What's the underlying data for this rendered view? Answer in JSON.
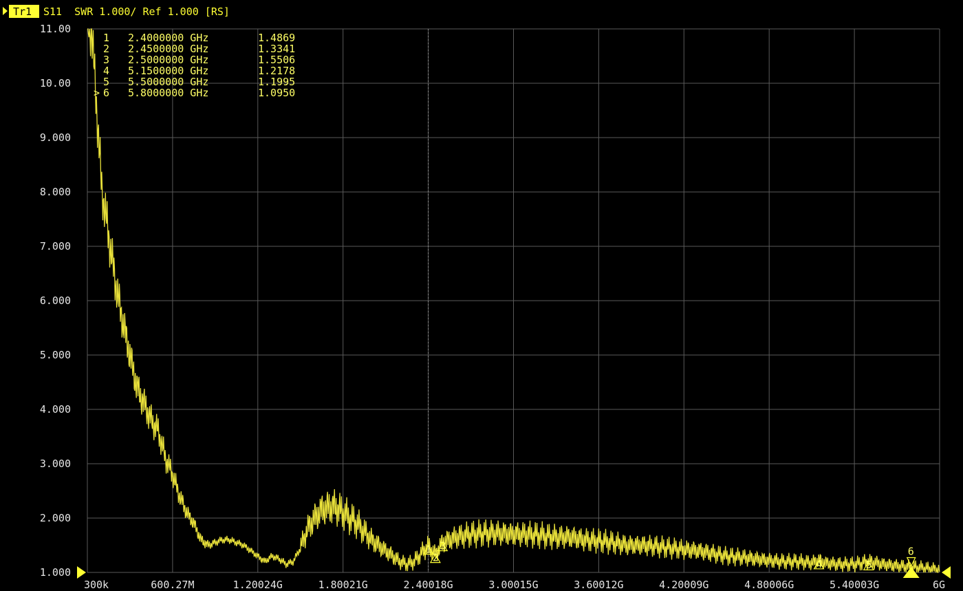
{
  "header": {
    "trace_label": "Tr1",
    "trace_info": "S11  SWR 1.000/ Ref 1.000 [RS]"
  },
  "colors": {
    "background": "#000000",
    "grid": "#5a5a5a",
    "trace": "#e8e03a",
    "marker": "#ffff33",
    "tick_text": "#e6e6e6"
  },
  "chart_data": {
    "type": "line",
    "title": "",
    "xlabel": "",
    "ylabel": "",
    "grid": true,
    "ylim": [
      1.0,
      11.0
    ],
    "xlim_ghz": [
      0.0003,
      6.0
    ],
    "y_tick_labels": [
      "11.00",
      "10.00",
      "9.000",
      "8.000",
      "7.000",
      "6.000",
      "5.000",
      "4.000",
      "3.000",
      "2.000",
      "1.000"
    ],
    "x_tick_labels": [
      "300k",
      "600.27M",
      "1.20024G",
      "1.80021G",
      "2.40018G",
      "3.00015G",
      "3.60012G",
      "4.20009G",
      "4.80006G",
      "5.40003G",
      "6G"
    ],
    "series": [
      {
        "x_ghz": [
          0.0003,
          0.03,
          0.06,
          0.1,
          0.15,
          0.2,
          0.25,
          0.3,
          0.35,
          0.4,
          0.45,
          0.5,
          0.55,
          0.6,
          0.65,
          0.7,
          0.75,
          0.8,
          0.85,
          0.9,
          0.95,
          1.0,
          1.05,
          1.1,
          1.15,
          1.2,
          1.25,
          1.3,
          1.35,
          1.4,
          1.45,
          1.5,
          1.55,
          1.6,
          1.65,
          1.7,
          1.75,
          1.8,
          1.85,
          1.9,
          1.95,
          2.0,
          2.05,
          2.1,
          2.15,
          2.2,
          2.25,
          2.3,
          2.35,
          2.4,
          2.45,
          2.5,
          2.55,
          2.6,
          2.7,
          2.8,
          2.9,
          3.0,
          3.1,
          3.2,
          3.3,
          3.4,
          3.5,
          3.6,
          3.7,
          3.8,
          3.9,
          4.0,
          4.1,
          4.2,
          4.3,
          4.4,
          4.5,
          4.6,
          4.7,
          4.8,
          4.9,
          5.0,
          5.1,
          5.15,
          5.2,
          5.3,
          5.4,
          5.5,
          5.6,
          5.7,
          5.8,
          5.9,
          6.0
        ],
        "swr": [
          11.0,
          11.0,
          9.8,
          8.1,
          7.2,
          6.3,
          5.6,
          5.0,
          4.4,
          4.1,
          3.8,
          3.6,
          3.1,
          2.8,
          2.4,
          2.1,
          1.9,
          1.6,
          1.5,
          1.55,
          1.6,
          1.6,
          1.55,
          1.5,
          1.4,
          1.3,
          1.2,
          1.3,
          1.25,
          1.15,
          1.2,
          1.45,
          1.8,
          2.0,
          2.15,
          2.2,
          2.2,
          2.1,
          2.0,
          1.9,
          1.75,
          1.6,
          1.5,
          1.4,
          1.3,
          1.2,
          1.15,
          1.2,
          1.35,
          1.49,
          1.33,
          1.55,
          1.6,
          1.65,
          1.7,
          1.72,
          1.72,
          1.7,
          1.7,
          1.68,
          1.65,
          1.65,
          1.6,
          1.58,
          1.55,
          1.5,
          1.5,
          1.48,
          1.45,
          1.42,
          1.4,
          1.35,
          1.3,
          1.28,
          1.25,
          1.22,
          1.2,
          1.2,
          1.18,
          1.22,
          1.17,
          1.15,
          1.15,
          1.2,
          1.15,
          1.12,
          1.1,
          1.08,
          1.05
        ]
      }
    ],
    "markers": [
      {
        "num": "1",
        "freq": "2.4000000 GHz",
        "value": "1.4869",
        "x_ghz": 2.4,
        "swr": 1.4869,
        "active": false
      },
      {
        "num": "2",
        "freq": "2.4500000 GHz",
        "value": "1.3341",
        "x_ghz": 2.45,
        "swr": 1.3341,
        "active": false
      },
      {
        "num": "3",
        "freq": "2.5000000 GHz",
        "value": "1.5506",
        "x_ghz": 2.5,
        "swr": 1.5506,
        "active": false
      },
      {
        "num": "4",
        "freq": "5.1500000 GHz",
        "value": "1.2178",
        "x_ghz": 5.15,
        "swr": 1.2178,
        "active": false
      },
      {
        "num": "5",
        "freq": "5.5000000 GHz",
        "value": "1.1995",
        "x_ghz": 5.5,
        "swr": 1.1995,
        "active": false
      },
      {
        "num": "6",
        "freq": "5.8000000 GHz",
        "value": "1.0950",
        "x_ghz": 5.8,
        "swr": 1.095,
        "active": true
      }
    ],
    "active_marker_symbol": ">"
  }
}
